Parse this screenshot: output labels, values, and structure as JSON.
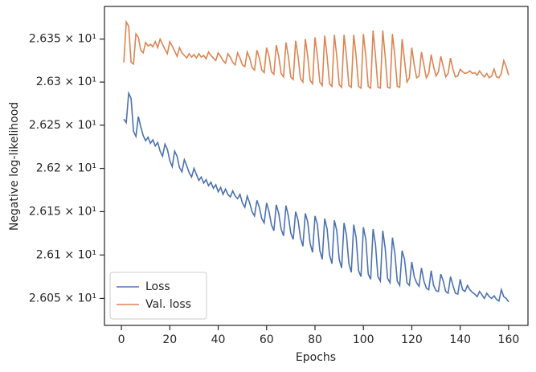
{
  "chart_data": {
    "type": "line",
    "xlabel": "Epochs",
    "ylabel": "Negative log-likelihood",
    "x": [
      1,
      2,
      3,
      4,
      5,
      6,
      7,
      8,
      9,
      10,
      11,
      12,
      13,
      14,
      15,
      16,
      17,
      18,
      19,
      20,
      21,
      22,
      23,
      24,
      25,
      26,
      27,
      28,
      29,
      30,
      31,
      32,
      33,
      34,
      35,
      36,
      37,
      38,
      39,
      40,
      41,
      42,
      43,
      44,
      45,
      46,
      47,
      48,
      49,
      50,
      51,
      52,
      53,
      54,
      55,
      56,
      57,
      58,
      59,
      60,
      61,
      62,
      63,
      64,
      65,
      66,
      67,
      68,
      69,
      70,
      71,
      72,
      73,
      74,
      75,
      76,
      77,
      78,
      79,
      80,
      81,
      82,
      83,
      84,
      85,
      86,
      87,
      88,
      89,
      90,
      91,
      92,
      93,
      94,
      95,
      96,
      97,
      98,
      99,
      100,
      101,
      102,
      103,
      104,
      105,
      106,
      107,
      108,
      109,
      110,
      111,
      112,
      113,
      114,
      115,
      116,
      117,
      118,
      119,
      120,
      121,
      122,
      123,
      124,
      125,
      126,
      127,
      128,
      129,
      130,
      131,
      132,
      133,
      134,
      135,
      136,
      137,
      138,
      139,
      140,
      141,
      142,
      143,
      144,
      145,
      146,
      147,
      148,
      149,
      150,
      151,
      152,
      153,
      154,
      155,
      156,
      157,
      158,
      159,
      160
    ],
    "series": [
      {
        "name": "Loss",
        "color": "#4c72b0",
        "values": [
          26.257,
          26.253,
          26.287,
          26.281,
          26.243,
          26.237,
          26.26,
          26.248,
          26.238,
          26.232,
          26.236,
          26.229,
          26.233,
          26.226,
          26.23,
          26.22,
          26.214,
          26.228,
          26.222,
          26.209,
          26.202,
          26.22,
          26.214,
          26.201,
          26.196,
          26.21,
          26.203,
          26.195,
          26.19,
          26.2,
          26.193,
          26.186,
          26.19,
          26.183,
          26.187,
          26.18,
          26.184,
          26.177,
          26.181,
          26.173,
          26.178,
          26.17,
          26.176,
          26.17,
          26.167,
          26.174,
          26.168,
          26.165,
          26.17,
          26.16,
          26.155,
          26.168,
          26.16,
          26.15,
          26.145,
          26.163,
          26.155,
          26.142,
          26.137,
          26.16,
          26.15,
          26.135,
          26.128,
          26.158,
          26.148,
          26.13,
          26.122,
          26.157,
          26.145,
          26.125,
          26.118,
          26.15,
          26.14,
          26.12,
          26.11,
          26.148,
          26.138,
          26.113,
          26.103,
          26.145,
          26.135,
          26.105,
          26.095,
          26.142,
          26.13,
          26.1,
          26.09,
          26.14,
          26.128,
          26.095,
          26.085,
          26.137,
          26.123,
          26.09,
          26.08,
          26.135,
          26.12,
          26.082,
          26.075,
          26.132,
          26.118,
          26.078,
          26.072,
          26.13,
          26.112,
          26.075,
          26.07,
          26.128,
          26.108,
          26.073,
          26.068,
          26.12,
          26.102,
          26.07,
          26.065,
          26.105,
          26.095,
          26.068,
          26.065,
          26.092,
          26.075,
          26.068,
          26.064,
          26.085,
          26.07,
          26.062,
          26.06,
          26.082,
          26.065,
          26.059,
          26.058,
          26.078,
          26.07,
          26.058,
          26.056,
          26.075,
          26.065,
          26.056,
          26.055,
          26.072,
          26.06,
          26.058,
          26.065,
          26.06,
          26.057,
          26.055,
          26.052,
          26.058,
          26.054,
          26.05,
          26.056,
          26.052,
          26.05,
          26.053,
          26.049,
          26.047,
          26.06,
          26.052,
          26.05,
          26.046
        ]
      },
      {
        "name": "Val. loss",
        "color": "#dd8452",
        "values": [
          26.323,
          26.37,
          26.365,
          26.323,
          26.321,
          26.356,
          26.352,
          26.337,
          26.334,
          26.346,
          26.342,
          26.344,
          26.341,
          26.347,
          26.34,
          26.35,
          26.344,
          26.338,
          26.333,
          26.347,
          26.342,
          26.336,
          26.33,
          26.34,
          26.334,
          26.331,
          26.328,
          26.333,
          26.329,
          26.332,
          26.328,
          26.333,
          26.329,
          26.331,
          26.327,
          26.335,
          26.331,
          26.328,
          26.325,
          26.334,
          26.33,
          26.325,
          26.322,
          26.333,
          26.329,
          26.323,
          26.32,
          26.334,
          26.328,
          26.32,
          26.318,
          26.335,
          26.328,
          26.317,
          26.314,
          26.337,
          26.328,
          26.314,
          26.311,
          26.34,
          26.33,
          26.312,
          26.309,
          26.343,
          26.33,
          26.31,
          26.306,
          26.346,
          26.33,
          26.306,
          26.303,
          26.348,
          26.33,
          26.304,
          26.3,
          26.35,
          26.33,
          26.302,
          26.298,
          26.352,
          26.33,
          26.3,
          26.296,
          26.354,
          26.33,
          26.298,
          26.295,
          26.355,
          26.33,
          26.297,
          26.294,
          26.355,
          26.33,
          26.296,
          26.294,
          26.355,
          26.33,
          26.295,
          26.293,
          26.356,
          26.33,
          26.295,
          26.293,
          26.36,
          26.33,
          26.294,
          26.293,
          26.36,
          26.33,
          26.294,
          26.293,
          26.356,
          26.33,
          26.295,
          26.294,
          26.35,
          26.325,
          26.3,
          26.305,
          26.34,
          26.32,
          26.305,
          26.307,
          26.335,
          26.32,
          26.305,
          26.31,
          26.332,
          26.318,
          26.307,
          26.312,
          26.33,
          26.318,
          26.306,
          26.31,
          26.328,
          26.315,
          26.306,
          26.307,
          26.315,
          26.312,
          26.31,
          26.311,
          26.313,
          26.31,
          26.311,
          26.308,
          26.313,
          26.309,
          26.306,
          26.31,
          26.305,
          26.307,
          26.315,
          26.306,
          26.305,
          26.31,
          26.325,
          26.318,
          26.308
        ]
      }
    ],
    "xlim": [
      -7,
      168
    ],
    "xticks": [
      0,
      20,
      40,
      60,
      80,
      100,
      120,
      140,
      160
    ],
    "ylim": [
      26.019,
      26.388
    ],
    "ylog": true,
    "yticks": [
      {
        "value": 26.05,
        "label": "2.605 × 10¹"
      },
      {
        "value": 26.1,
        "label": "2.61 × 10¹"
      },
      {
        "value": 26.15,
        "label": "2.615 × 10¹"
      },
      {
        "value": 26.2,
        "label": "2.62 × 10¹"
      },
      {
        "value": 26.25,
        "label": "2.625 × 10¹"
      },
      {
        "value": 26.3,
        "label": "2.63 × 10¹"
      },
      {
        "value": 26.35,
        "label": "2.635 × 10¹"
      }
    ],
    "grid": false,
    "legend": "lower left"
  }
}
